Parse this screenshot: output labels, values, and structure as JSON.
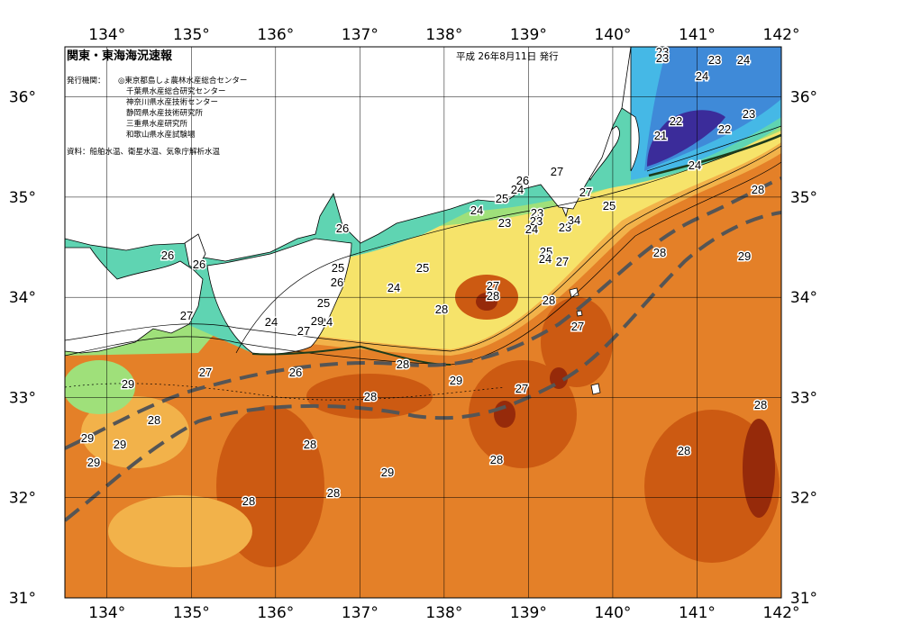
{
  "header": {
    "title": "関東・東海海況速報",
    "issue_date": "平成 26年8月11日 発行",
    "issuer_label": "発行機関：",
    "issuers": [
      "◎東京都島しょ農林水産総合センター",
      "千葉県水産総合研究センター",
      "神奈川県水産技術センター",
      "静岡県水産技術研究所",
      "三重県水産研究所",
      "和歌山県水産試験場"
    ],
    "sources": "資料：船舶水温、衛星水温、気象庁解析水温"
  },
  "axes": {
    "lon_ticks": [
      "134°",
      "135°",
      "136°",
      "137°",
      "138°",
      "139°",
      "140°",
      "141°",
      "142°"
    ],
    "lat_ticks": [
      "31°",
      "32°",
      "33°",
      "34°",
      "35°",
      "36°"
    ]
  },
  "isotherms": [
    {
      "text": "23"
    },
    {
      "text": "23"
    },
    {
      "text": "23"
    },
    {
      "text": "24"
    },
    {
      "text": "24"
    },
    {
      "text": "23"
    },
    {
      "text": "22"
    },
    {
      "text": "22"
    },
    {
      "text": "21"
    },
    {
      "text": "24"
    },
    {
      "text": "28"
    },
    {
      "text": "26"
    },
    {
      "text": "24"
    },
    {
      "text": "25"
    },
    {
      "text": "24"
    },
    {
      "text": "23"
    },
    {
      "text": "23"
    },
    {
      "text": "27"
    },
    {
      "text": "27"
    },
    {
      "text": "23"
    },
    {
      "text": "23"
    },
    {
      "text": "24"
    },
    {
      "text": "34"
    },
    {
      "text": "25"
    },
    {
      "text": "25"
    },
    {
      "text": "24"
    },
    {
      "text": "27"
    },
    {
      "text": "26"
    },
    {
      "text": "26"
    },
    {
      "text": "26"
    },
    {
      "text": "25"
    },
    {
      "text": "24"
    },
    {
      "text": "25"
    },
    {
      "text": "26"
    },
    {
      "text": "28"
    },
    {
      "text": "29"
    },
    {
      "text": "27"
    },
    {
      "text": "28"
    },
    {
      "text": "28"
    },
    {
      "text": "28"
    },
    {
      "text": "27"
    },
    {
      "text": "24"
    },
    {
      "text": "25"
    },
    {
      "text": "24"
    },
    {
      "text": "29"
    },
    {
      "text": "27"
    },
    {
      "text": "27"
    },
    {
      "text": "27"
    },
    {
      "text": "26"
    },
    {
      "text": "28"
    },
    {
      "text": "29"
    },
    {
      "text": "29"
    },
    {
      "text": "28"
    },
    {
      "text": "27"
    },
    {
      "text": "28"
    },
    {
      "text": "28"
    },
    {
      "text": "29"
    },
    {
      "text": "29"
    },
    {
      "text": "29"
    },
    {
      "text": "28"
    },
    {
      "text": "28"
    },
    {
      "text": "28"
    },
    {
      "text": "29"
    },
    {
      "text": "28"
    },
    {
      "text": "28"
    }
  ],
  "colors": {
    "land": "#ffffff",
    "t21": "#3b2c9a",
    "t22": "#2f4fc2",
    "t23": "#3f8ad8",
    "t24": "#43b5e6",
    "t25": "#47d2c4",
    "t26": "#9fe07a",
    "t27": "#f6e36a",
    "t28": "#ee8a2a",
    "t29": "#cc5a12",
    "t30": "#962a0a",
    "kuroshio_axis": "#555555"
  }
}
